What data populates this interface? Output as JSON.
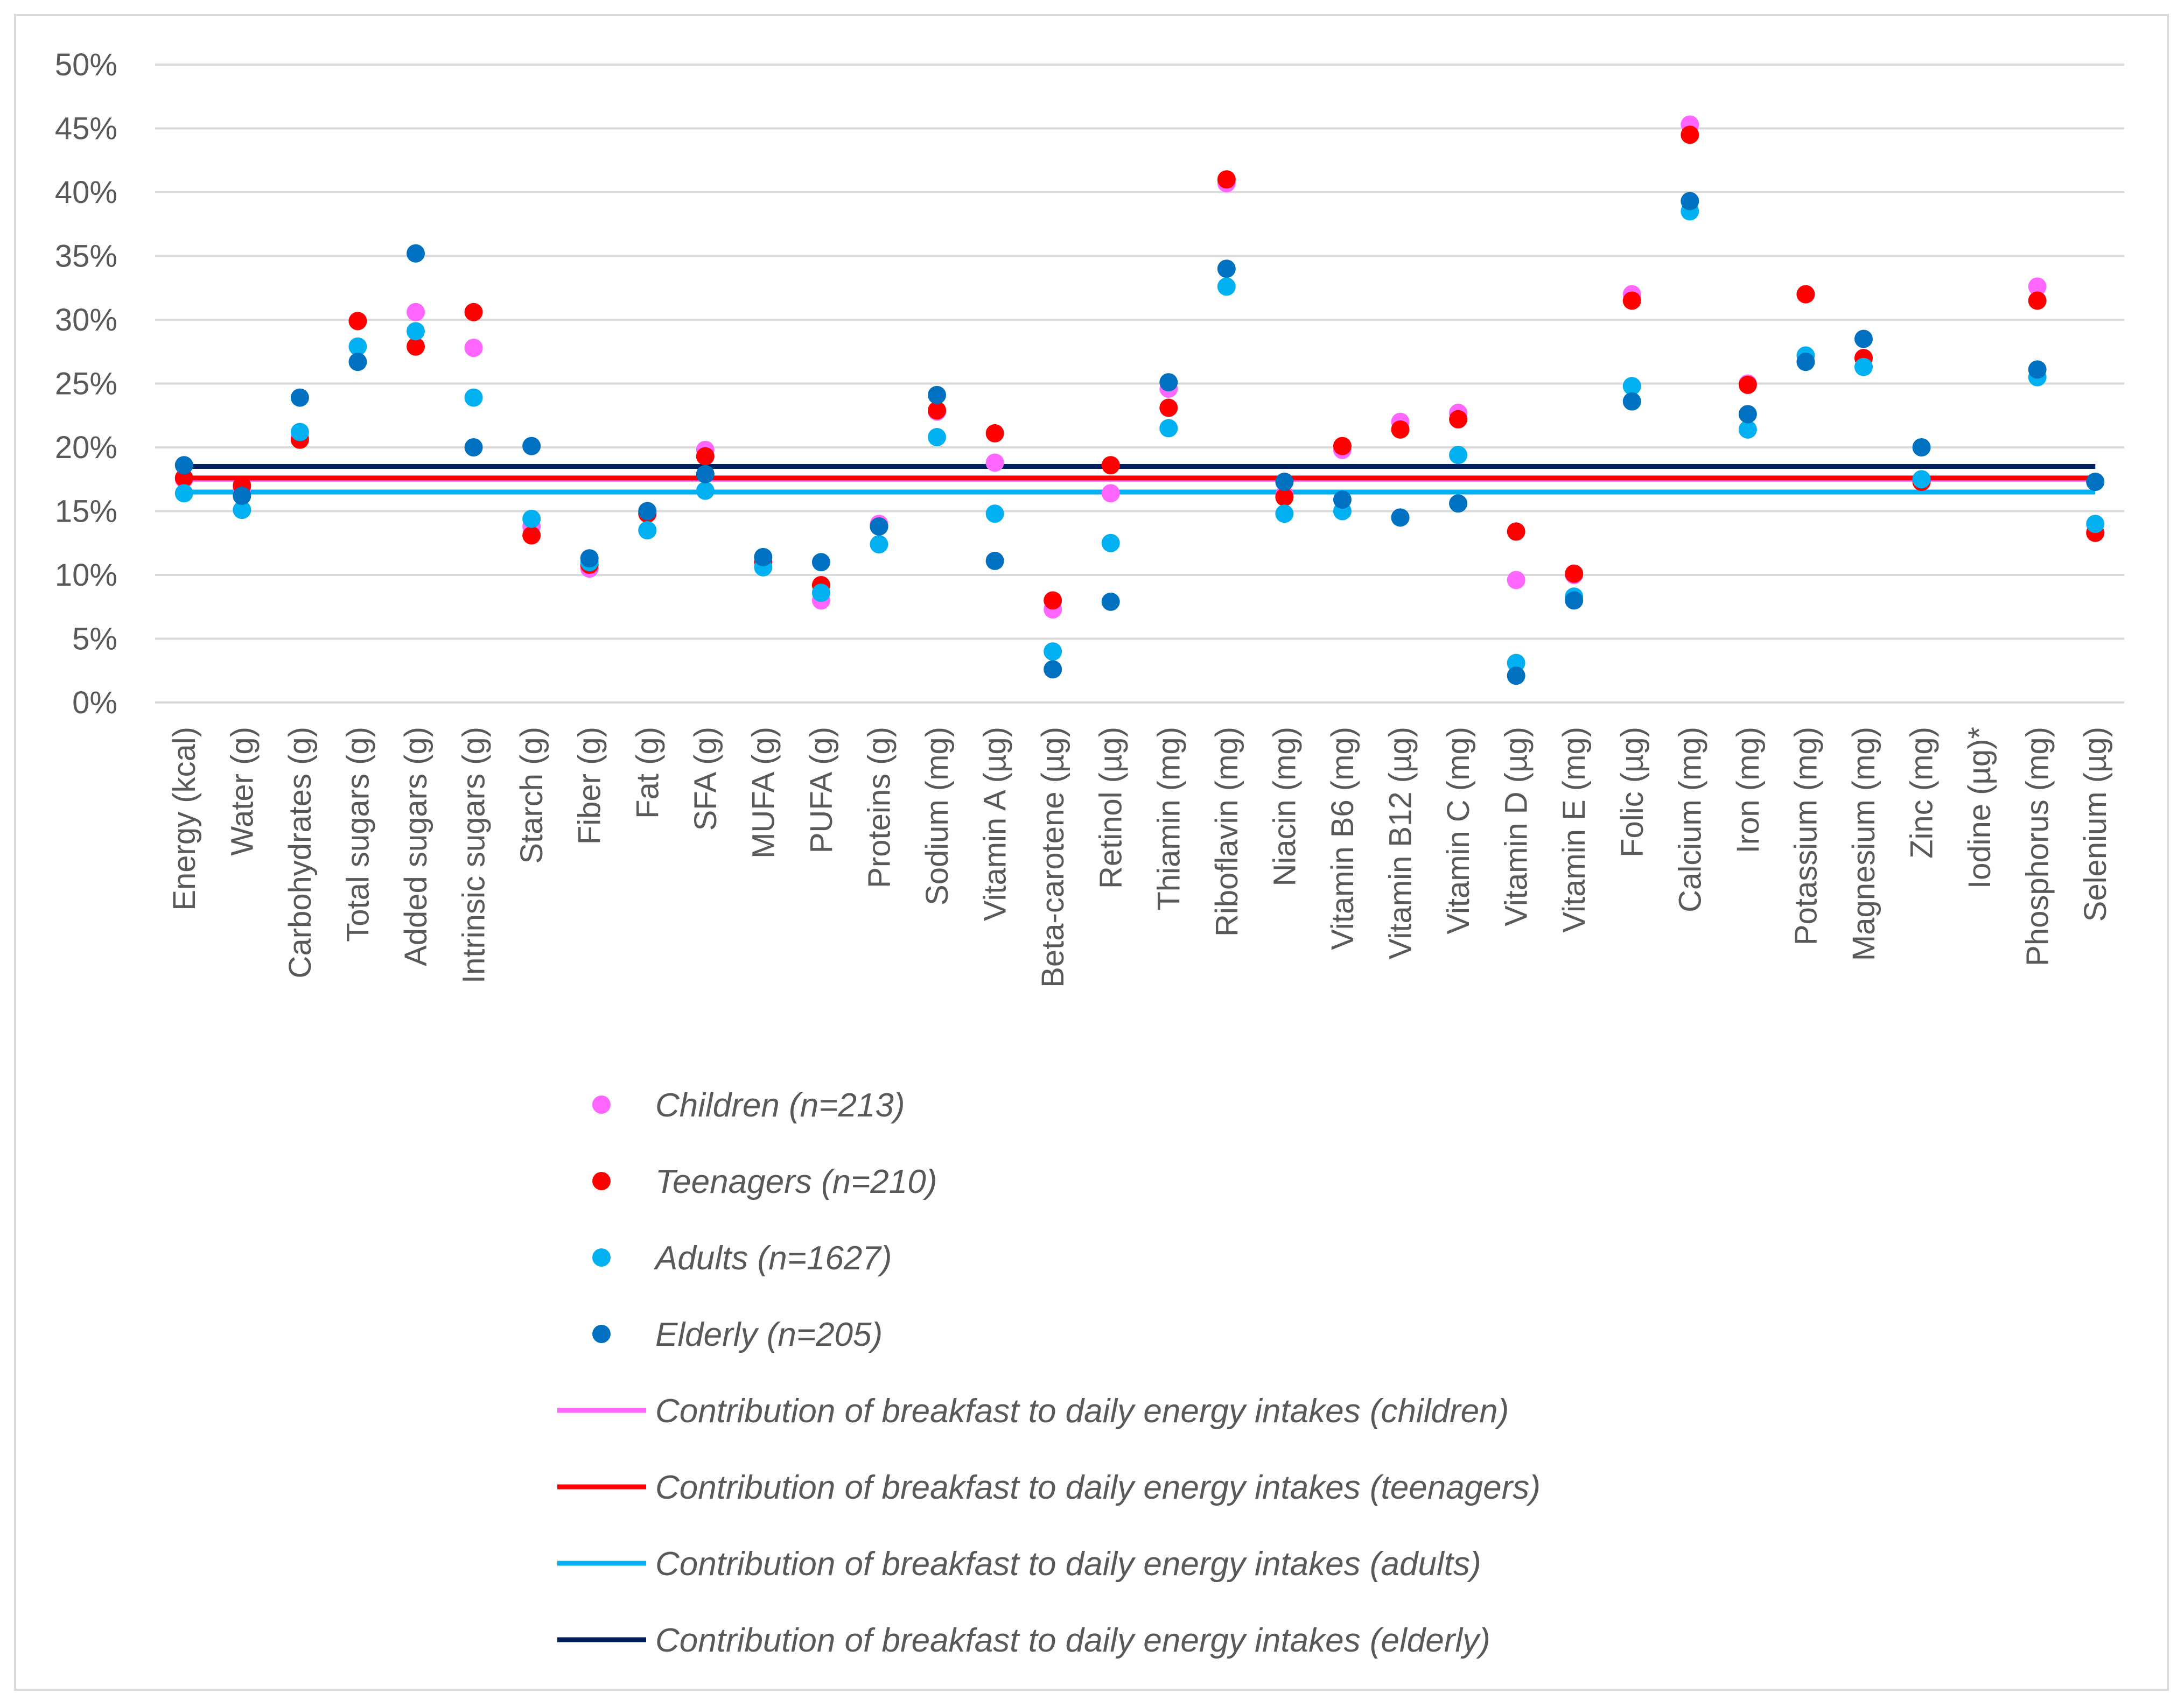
{
  "chart_data": {
    "type": "scatter",
    "title": "",
    "xlabel": "",
    "ylabel": "",
    "ylim": [
      0,
      50
    ],
    "y_tick_labels": [
      "0%",
      "5%",
      "10%",
      "15%",
      "20%",
      "25%",
      "30%",
      "35%",
      "40%",
      "45%",
      "50%"
    ],
    "grid": true,
    "legend_position": "bottom",
    "categories": [
      "Energy (kcal)",
      "Water (g)",
      "Carbohydrates (g)",
      "Total sugars (g)",
      "Added sugars (g)",
      "Intrinsic sugars (g)",
      "Starch (g)",
      "Fiber (g)",
      "Fat (g)",
      "SFA (g)",
      "MUFA (g)",
      "PUFA (g)",
      "Proteins (g)",
      "Sodium (mg)",
      "Vitamin A (µg)",
      "Beta-carotene (µg)",
      "Retinol (µg)",
      "Thiamin (mg)",
      "Riboflavin (mg)",
      "Niacin (mg)",
      "Vitamin B6 (mg)",
      "Vitamin B12 (µg)",
      "Vitamin C (mg)",
      "Vitamin D (µg)",
      "Vitamin E (mg)",
      "Folic (µg)",
      "Calcium (mg)",
      "Iron (mg)",
      "Potassium (mg)",
      "Magnesium (mg)",
      "Zinc (mg)",
      "Iodine (µg)*",
      "Phosphorus (mg)",
      "Selenium (µg)"
    ],
    "series": [
      {
        "name": "Children (n=213)",
        "color": "#ff66ff",
        "values": [
          17.5,
          16.8,
          20.8,
          29.9,
          30.6,
          27.8,
          13.8,
          10.5,
          14.8,
          19.8,
          11.0,
          8.0,
          14.0,
          22.8,
          18.8,
          7.3,
          16.4,
          24.6,
          40.7,
          16.3,
          19.8,
          22.0,
          22.7,
          9.6,
          10.0,
          32.0,
          45.3,
          25.0,
          32.0,
          27.0,
          17.3,
          null,
          32.6,
          13.3
        ]
      },
      {
        "name": "Teenagers (n=210)",
        "color": "#ff0000",
        "values": [
          17.6,
          17.0,
          20.6,
          29.9,
          27.9,
          30.6,
          13.1,
          10.8,
          14.8,
          19.3,
          11.0,
          9.2,
          13.8,
          22.9,
          21.1,
          8.0,
          18.6,
          23.1,
          41.0,
          16.1,
          20.1,
          21.4,
          22.2,
          13.4,
          10.1,
          31.5,
          44.5,
          24.9,
          32.0,
          27.0,
          17.3,
          null,
          31.5,
          13.3
        ]
      },
      {
        "name": "Adults (n=1627)",
        "color": "#00b0f0",
        "values": [
          16.4,
          15.1,
          21.2,
          27.9,
          29.1,
          23.9,
          14.4,
          11.0,
          13.5,
          16.6,
          10.6,
          8.6,
          12.4,
          20.8,
          14.8,
          4.0,
          12.5,
          21.5,
          32.6,
          14.8,
          15.0,
          14.5,
          19.4,
          3.1,
          8.3,
          24.8,
          38.5,
          21.4,
          27.2,
          26.3,
          17.5,
          null,
          25.5,
          14.0
        ]
      },
      {
        "name": "Elderly (n=205)",
        "color": "#0070c0",
        "values": [
          18.6,
          16.2,
          23.9,
          26.7,
          35.2,
          20.0,
          20.1,
          11.3,
          15.0,
          17.9,
          11.4,
          11.0,
          13.8,
          24.1,
          11.1,
          2.6,
          7.9,
          25.1,
          34.0,
          17.3,
          15.9,
          14.5,
          15.6,
          2.1,
          8.0,
          23.6,
          39.3,
          22.6,
          26.7,
          28.5,
          20.0,
          null,
          26.1,
          17.3
        ]
      }
    ],
    "reference_lines": [
      {
        "name": "Contribution of breakfast to daily energy intakes (children)",
        "color": "#ff66ff",
        "value": 17.5
      },
      {
        "name": "Contribution of breakfast to daily energy intakes (teenagers)",
        "color": "#ff0000",
        "value": 17.6
      },
      {
        "name": "Contribution of breakfast to daily energy intakes (adults)",
        "color": "#00b0f0",
        "value": 16.5
      },
      {
        "name": "Contribution of breakfast to daily energy intakes (elderly)",
        "color": "#002060",
        "value": 18.5
      }
    ]
  }
}
